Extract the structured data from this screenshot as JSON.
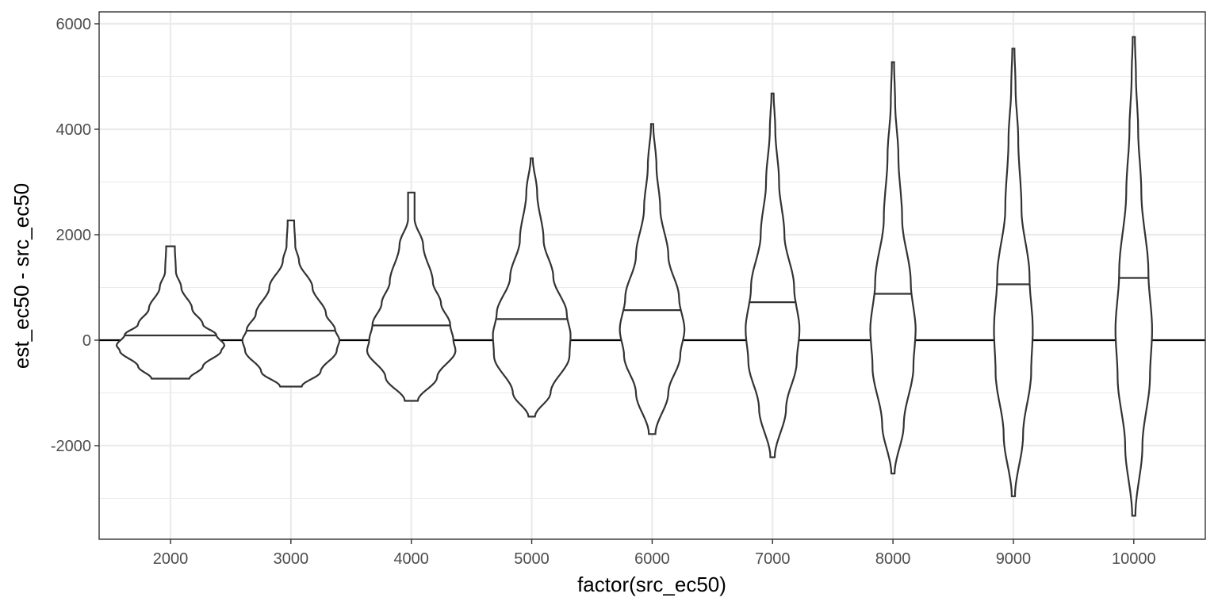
{
  "chart_data": {
    "type": "violin",
    "xlabel": "factor(src_ec50)",
    "ylabel": "est_ec50 - src_ec50",
    "categories": [
      "2000",
      "3000",
      "4000",
      "5000",
      "6000",
      "7000",
      "8000",
      "9000",
      "10000"
    ],
    "ylim": [
      -3800,
      6200
    ],
    "y_ticks": [
      6000,
      4000,
      2000,
      0,
      -2000
    ],
    "y_tick_labels": [
      "6000",
      "4000",
      "2000",
      "0",
      "-2000"
    ],
    "reference_line": 0,
    "grid": true,
    "colors": {
      "outline": "#333333",
      "fill": "#ffffff",
      "grid": "#ebebeb",
      "reference": "#000000"
    },
    "violins": [
      {
        "category": "2000",
        "min": -730,
        "max": 1780,
        "median": 90,
        "profile": [
          [
            -730,
            0.35
          ],
          [
            -500,
            0.6
          ],
          [
            -200,
            0.94
          ],
          [
            -100,
            1.0
          ],
          [
            100,
            0.85
          ],
          [
            300,
            0.6
          ],
          [
            600,
            0.4
          ],
          [
            1000,
            0.2
          ],
          [
            1300,
            0.1
          ],
          [
            1780,
            0.08
          ]
        ]
      },
      {
        "category": "3000",
        "min": -880,
        "max": 2270,
        "median": 180,
        "profile": [
          [
            -880,
            0.2
          ],
          [
            -600,
            0.55
          ],
          [
            -200,
            0.85
          ],
          [
            0,
            0.9
          ],
          [
            200,
            0.82
          ],
          [
            500,
            0.65
          ],
          [
            1000,
            0.4
          ],
          [
            1500,
            0.15
          ],
          [
            1800,
            0.08
          ],
          [
            2270,
            0.06
          ]
        ]
      },
      {
        "category": "4000",
        "min": -1150,
        "max": 2800,
        "median": 280,
        "profile": [
          [
            -1150,
            0.12
          ],
          [
            -700,
            0.48
          ],
          [
            -200,
            0.82
          ],
          [
            0,
            0.78
          ],
          [
            300,
            0.72
          ],
          [
            700,
            0.55
          ],
          [
            1100,
            0.4
          ],
          [
            1800,
            0.22
          ],
          [
            2300,
            0.06
          ],
          [
            2800,
            0.06
          ]
        ]
      },
      {
        "category": "5000",
        "min": -1450,
        "max": 3450,
        "median": 400,
        "profile": [
          [
            -1450,
            0.06
          ],
          [
            -1000,
            0.35
          ],
          [
            -300,
            0.7
          ],
          [
            100,
            0.72
          ],
          [
            500,
            0.65
          ],
          [
            1200,
            0.4
          ],
          [
            1900,
            0.22
          ],
          [
            2800,
            0.1
          ],
          [
            3450,
            0.02
          ]
        ]
      },
      {
        "category": "6000",
        "min": -1780,
        "max": 4100,
        "median": 570,
        "profile": [
          [
            -1780,
            0.06
          ],
          [
            -1000,
            0.3
          ],
          [
            -300,
            0.52
          ],
          [
            200,
            0.6
          ],
          [
            800,
            0.5
          ],
          [
            1600,
            0.3
          ],
          [
            2500,
            0.15
          ],
          [
            3300,
            0.08
          ],
          [
            4100,
            0.02
          ]
        ]
      },
      {
        "category": "7000",
        "min": -2220,
        "max": 4680,
        "median": 720,
        "profile": [
          [
            -2220,
            0.04
          ],
          [
            -1300,
            0.25
          ],
          [
            -400,
            0.45
          ],
          [
            200,
            0.5
          ],
          [
            1000,
            0.4
          ],
          [
            2000,
            0.22
          ],
          [
            3000,
            0.12
          ],
          [
            4000,
            0.05
          ],
          [
            4680,
            0.02
          ]
        ]
      },
      {
        "category": "8000",
        "min": -2530,
        "max": 5270,
        "median": 880,
        "profile": [
          [
            -2530,
            0.03
          ],
          [
            -1600,
            0.2
          ],
          [
            -500,
            0.38
          ],
          [
            200,
            0.42
          ],
          [
            1100,
            0.33
          ],
          [
            2300,
            0.17
          ],
          [
            3500,
            0.1
          ],
          [
            4500,
            0.04
          ],
          [
            5270,
            0.02
          ]
        ]
      },
      {
        "category": "9000",
        "min": -2960,
        "max": 5530,
        "median": 1060,
        "profile": [
          [
            -2960,
            0.03
          ],
          [
            -1800,
            0.18
          ],
          [
            -600,
            0.33
          ],
          [
            200,
            0.36
          ],
          [
            1200,
            0.3
          ],
          [
            2500,
            0.15
          ],
          [
            3800,
            0.09
          ],
          [
            4800,
            0.04
          ],
          [
            5530,
            0.02
          ]
        ]
      },
      {
        "category": "10000",
        "min": -3330,
        "max": 5750,
        "median": 1180,
        "profile": [
          [
            -3330,
            0.03
          ],
          [
            -2000,
            0.16
          ],
          [
            -700,
            0.3
          ],
          [
            200,
            0.34
          ],
          [
            1300,
            0.27
          ],
          [
            2800,
            0.14
          ],
          [
            4000,
            0.08
          ],
          [
            5000,
            0.04
          ],
          [
            5750,
            0.02
          ]
        ]
      }
    ]
  }
}
